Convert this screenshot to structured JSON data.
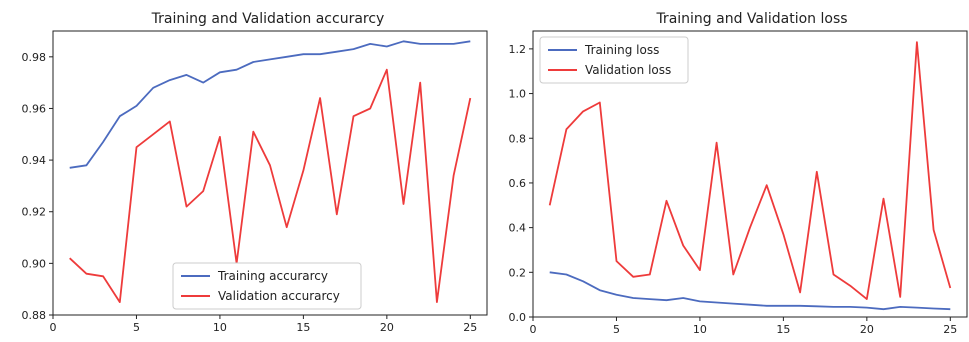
{
  "chart_data": [
    {
      "type": "line",
      "title": "Training and Validation accurarcy",
      "xlabel": "",
      "ylabel": "",
      "xlim": [
        0,
        26
      ],
      "ylim": [
        0.88,
        0.99
      ],
      "xticks": [
        0,
        5,
        10,
        15,
        20,
        25
      ],
      "yticks": [
        0.88,
        0.9,
        0.92,
        0.94,
        0.96,
        0.98
      ],
      "ytick_labels": [
        "0.88",
        "0.90",
        "0.92",
        "0.94",
        "0.96",
        "0.98"
      ],
      "grid": false,
      "legend_position": "lower-center",
      "x": [
        1,
        2,
        3,
        4,
        5,
        6,
        7,
        8,
        9,
        10,
        11,
        12,
        13,
        14,
        15,
        16,
        17,
        18,
        19,
        20,
        21,
        22,
        23,
        24,
        25
      ],
      "series": [
        {
          "name": "Training accurarcy",
          "color": "#4c6bbf",
          "values": [
            0.937,
            0.938,
            0.947,
            0.957,
            0.961,
            0.968,
            0.971,
            0.973,
            0.97,
            0.974,
            0.975,
            0.978,
            0.979,
            0.98,
            0.981,
            0.981,
            0.982,
            0.983,
            0.985,
            0.984,
            0.986,
            0.985,
            0.985,
            0.985,
            0.986
          ]
        },
        {
          "name": "Validation accurarcy",
          "color": "#ee3b3b",
          "values": [
            0.902,
            0.896,
            0.895,
            0.885,
            0.945,
            0.95,
            0.955,
            0.922,
            0.928,
            0.949,
            0.9,
            0.951,
            0.938,
            0.914,
            0.936,
            0.964,
            0.919,
            0.957,
            0.96,
            0.975,
            0.923,
            0.97,
            0.885,
            0.934,
            0.964
          ]
        }
      ]
    },
    {
      "type": "line",
      "title": "Training and Validation loss",
      "xlabel": "",
      "ylabel": "",
      "xlim": [
        0,
        26
      ],
      "ylim": [
        0,
        1.28
      ],
      "xticks": [
        0,
        5,
        10,
        15,
        20,
        25
      ],
      "yticks": [
        0.0,
        0.2,
        0.4,
        0.6,
        0.8,
        1.0,
        1.2
      ],
      "ytick_labels": [
        "0.0",
        "0.2",
        "0.4",
        "0.6",
        "0.8",
        "1.0",
        "1.2"
      ],
      "grid": false,
      "legend_position": "top-left",
      "x": [
        1,
        2,
        3,
        4,
        5,
        6,
        7,
        8,
        9,
        10,
        11,
        12,
        13,
        14,
        15,
        16,
        17,
        18,
        19,
        20,
        21,
        22,
        23,
        24,
        25
      ],
      "series": [
        {
          "name": "Training loss",
          "color": "#4c6bbf",
          "values": [
            0.2,
            0.19,
            0.16,
            0.12,
            0.1,
            0.085,
            0.08,
            0.075,
            0.085,
            0.07,
            0.065,
            0.06,
            0.055,
            0.05,
            0.05,
            0.05,
            0.048,
            0.045,
            0.045,
            0.042,
            0.035,
            0.045,
            0.042,
            0.038,
            0.035
          ]
        },
        {
          "name": "Validation loss",
          "color": "#ee3b3b",
          "values": [
            0.5,
            0.84,
            0.92,
            0.96,
            0.25,
            0.18,
            0.19,
            0.52,
            0.32,
            0.21,
            0.78,
            0.19,
            0.4,
            0.59,
            0.37,
            0.11,
            0.65,
            0.19,
            0.14,
            0.08,
            0.53,
            0.09,
            1.23,
            0.39,
            0.13
          ]
        }
      ]
    }
  ]
}
